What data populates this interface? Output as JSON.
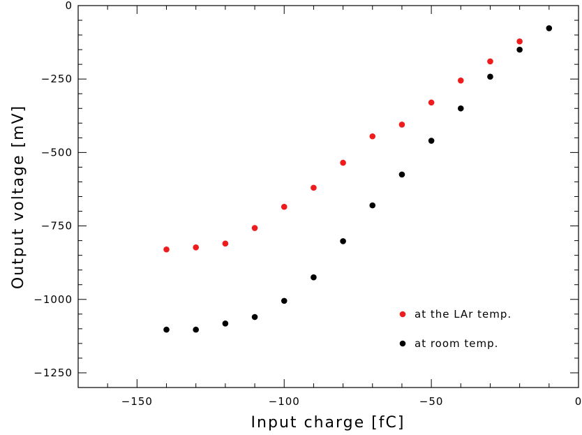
{
  "chart_data": {
    "type": "scatter",
    "xlabel": "Input charge [fC]",
    "ylabel": "Output voltage [mV]",
    "xlim": [
      -170,
      0
    ],
    "ylim": [
      -1300,
      0
    ],
    "x_ticks": [
      -150,
      -100,
      -50,
      0
    ],
    "y_ticks": [
      0,
      -250,
      -500,
      -750,
      -1000,
      -1250
    ],
    "x_tick_labels": [
      "−150",
      "−100",
      "−50",
      "0"
    ],
    "y_tick_labels": [
      "0",
      "−250",
      "−500",
      "−750",
      "−1000",
      "−1250"
    ],
    "grid": false,
    "legend_position": "bottom-right",
    "series": [
      {
        "name": "at the LAr temp.",
        "color": "#ee1c1c",
        "points": [
          {
            "x": -140,
            "y": -830
          },
          {
            "x": -130,
            "y": -823
          },
          {
            "x": -120,
            "y": -810
          },
          {
            "x": -110,
            "y": -757
          },
          {
            "x": -100,
            "y": -685
          },
          {
            "x": -90,
            "y": -620
          },
          {
            "x": -80,
            "y": -535
          },
          {
            "x": -70,
            "y": -445
          },
          {
            "x": -60,
            "y": -405
          },
          {
            "x": -50,
            "y": -330
          },
          {
            "x": -40,
            "y": -255
          },
          {
            "x": -30,
            "y": -190
          },
          {
            "x": -20,
            "y": -122
          }
        ]
      },
      {
        "name": "at room temp.",
        "color": "#000000",
        "points": [
          {
            "x": -140,
            "y": -1103
          },
          {
            "x": -130,
            "y": -1103
          },
          {
            "x": -120,
            "y": -1082
          },
          {
            "x": -110,
            "y": -1060
          },
          {
            "x": -100,
            "y": -1005
          },
          {
            "x": -90,
            "y": -925
          },
          {
            "x": -80,
            "y": -802
          },
          {
            "x": -70,
            "y": -680
          },
          {
            "x": -60,
            "y": -575
          },
          {
            "x": -50,
            "y": -460
          },
          {
            "x": -40,
            "y": -350
          },
          {
            "x": -30,
            "y": -242
          },
          {
            "x": -20,
            "y": -150
          },
          {
            "x": -10,
            "y": -77
          }
        ]
      }
    ]
  }
}
